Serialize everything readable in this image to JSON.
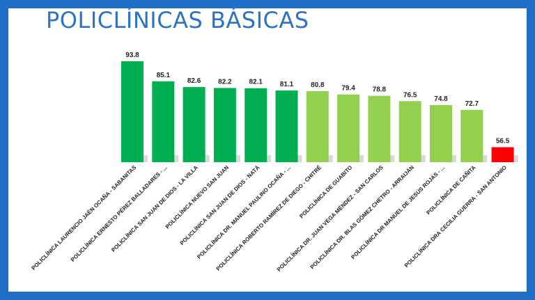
{
  "header": {
    "title": "POLICLÍNICAS BÁSICAS"
  },
  "colors": {
    "frame": "#1f6fc6",
    "title": "#2f73be",
    "dark_green": "#00b050",
    "light_green": "#92d050",
    "red": "#ff0000"
  },
  "chart_data": {
    "type": "bar",
    "title": "POLICLÍNICAS BÁSICAS",
    "xlabel": "",
    "ylabel": "",
    "ylim": [
      50,
      100
    ],
    "grid": false,
    "legend": "none",
    "categories": [
      "POLICLÍNICA LAURENCIO JAÉN OCAÑA - SABANITAS",
      "POLICLÍNICA ERNESTO PÉREZ BALLADARES - ...",
      "POLICLÍNICA SAN JUAN DE DIOS - LA VILLA",
      "POLICLÍNICA NUEVO SAN JUAN",
      "POLICLÍNICA SAN JUAN DE DIOS - NATÁ",
      "POLICLÍNICA DR. MANUEL PAULINO OCAÑA - ...",
      "POLICLÍNICA ROBERTO RAMÍREZ DE DIEGO - CHITRÉ",
      "POLICLÍNICA DE GUABITO",
      "POLICLÍNICA DR. JUAN VEGA MÉNDEZ - SAN CARLOS",
      "POLICLÍNICA DR. BLAS GÓMEZ CHETRO - ARRAIJÁN",
      "POLICLÍNICA DR MANUEL DE JESÚS ROJAS - ...",
      "POLICLÍNICA DE CAÑITA",
      "POLICLÍNICA DRA CECILIA GUERRA - SAN ANTONIO"
    ],
    "values": [
      93.8,
      85.1,
      82.6,
      82.2,
      82.1,
      81.1,
      80.8,
      79.4,
      78.8,
      76.5,
      74.8,
      72.7,
      56.5
    ],
    "value_labels": [
      "93.8",
      "85.1",
      "82.6",
      "82.2",
      "82.1",
      "81.1",
      "80.8",
      "79.4",
      "78.8",
      "76.5",
      "74.8",
      "72.7",
      "56.5"
    ],
    "bar_colors": [
      "#00b050",
      "#00b050",
      "#00b050",
      "#00b050",
      "#00b050",
      "#00b050",
      "#92d050",
      "#92d050",
      "#92d050",
      "#92d050",
      "#92d050",
      "#92d050",
      "#ff0000"
    ]
  }
}
